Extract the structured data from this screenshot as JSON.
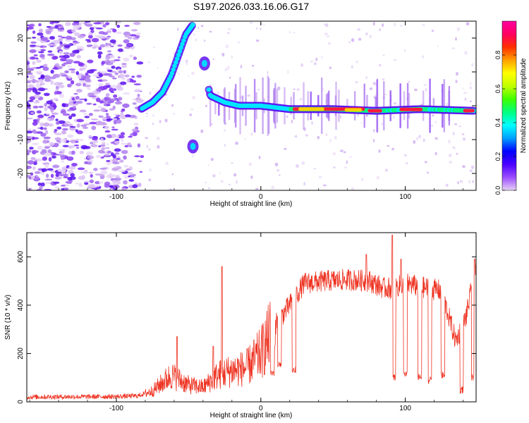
{
  "title": "S197.2026.033.16.06.G17",
  "chart_data": [
    {
      "type": "heatmap",
      "title": "S197.2026.033.16.06.G17",
      "xlabel": "Height of straight line (km)",
      "ylabel": "Frequency (Hz)",
      "xlim": [
        -162,
        149
      ],
      "ylim": [
        -25,
        25
      ],
      "xticks": [
        -100,
        0,
        100
      ],
      "yticks": [
        -20,
        -10,
        0,
        10,
        20
      ],
      "colorbar": {
        "label": "Normalized spectral amplitude",
        "range": [
          0,
          1
        ],
        "ticks": [
          "0.0",
          "0.2",
          "0.4",
          "0.6",
          "0.8"
        ],
        "ticks_values": [
          0,
          0.2,
          0.4,
          0.6,
          0.8
        ],
        "colors": [
          "#e6d2f5",
          "#9b4dff",
          "#4b00ff",
          "#0000ff",
          "#00a0ff",
          "#00ffff",
          "#00ff80",
          "#40ff00",
          "#c0ff00",
          "#ffff00",
          "#ffa000",
          "#ff3000",
          "#ff0060",
          "#ff00a0"
        ]
      },
      "trace": [
        {
          "x": -83,
          "y": -1
        },
        {
          "x": -75,
          "y": 1
        },
        {
          "x": -68,
          "y": 4
        },
        {
          "x": -62,
          "y": 9
        },
        {
          "x": -57,
          "y": 15
        },
        {
          "x": -52,
          "y": 21
        },
        {
          "x": -47,
          "y": 24
        },
        {
          "x": -35,
          "y": 3
        },
        {
          "x": -25,
          "y": 1
        },
        {
          "x": -15,
          "y": 0
        },
        {
          "x": 0,
          "y": 0
        },
        {
          "x": 20,
          "y": -1
        },
        {
          "x": 50,
          "y": -1
        },
        {
          "x": 80,
          "y": -1.5
        },
        {
          "x": 110,
          "y": -1
        },
        {
          "x": 148,
          "y": -1.5
        }
      ],
      "blobs": [
        {
          "x": -39,
          "y": 12.5
        },
        {
          "x": -47,
          "y": -12
        }
      ]
    },
    {
      "type": "line",
      "xlabel": "Height of straight line (km)",
      "ylabel": "SNR (10 * v/v)",
      "xlim": [
        -162,
        149
      ],
      "ylim": [
        0,
        700
      ],
      "xticks": [
        -100,
        0,
        100
      ],
      "yticks": [
        0,
        200,
        400,
        600
      ],
      "color": "#ee3322",
      "envelope": [
        {
          "x": -162,
          "y": 20
        },
        {
          "x": -100,
          "y": 22
        },
        {
          "x": -85,
          "y": 25
        },
        {
          "x": -75,
          "y": 45
        },
        {
          "x": -62,
          "y": 110
        },
        {
          "x": -50,
          "y": 70
        },
        {
          "x": -40,
          "y": 60
        },
        {
          "x": -30,
          "y": 110
        },
        {
          "x": -20,
          "y": 130
        },
        {
          "x": -10,
          "y": 140
        },
        {
          "x": 0,
          "y": 200
        },
        {
          "x": 10,
          "y": 320
        },
        {
          "x": 20,
          "y": 400
        },
        {
          "x": 30,
          "y": 490
        },
        {
          "x": 45,
          "y": 500
        },
        {
          "x": 60,
          "y": 505
        },
        {
          "x": 75,
          "y": 500
        },
        {
          "x": 85,
          "y": 470
        },
        {
          "x": 92,
          "y": 470
        },
        {
          "x": 100,
          "y": 490
        },
        {
          "x": 115,
          "y": 470
        },
        {
          "x": 125,
          "y": 460
        },
        {
          "x": 135,
          "y": 250
        },
        {
          "x": 142,
          "y": 350
        },
        {
          "x": 149,
          "y": 560
        }
      ],
      "dips": [
        {
          "x": 8,
          "y": 120
        },
        {
          "x": 13,
          "y": 150
        },
        {
          "x": 23,
          "y": 130
        },
        {
          "x": 92,
          "y": 100
        },
        {
          "x": 100,
          "y": 110
        },
        {
          "x": 110,
          "y": 100
        },
        {
          "x": 117,
          "y": 90
        },
        {
          "x": 126,
          "y": 110
        },
        {
          "x": 139,
          "y": 50
        },
        {
          "x": 147,
          "y": 100
        }
      ],
      "spikes": [
        {
          "x": -58,
          "y": 270
        },
        {
          "x": -27,
          "y": 560
        },
        {
          "x": -33,
          "y": 230
        },
        {
          "x": 73,
          "y": 610
        },
        {
          "x": 91,
          "y": 690
        },
        {
          "x": 97,
          "y": 590
        },
        {
          "x": 148,
          "y": 590
        }
      ]
    }
  ]
}
